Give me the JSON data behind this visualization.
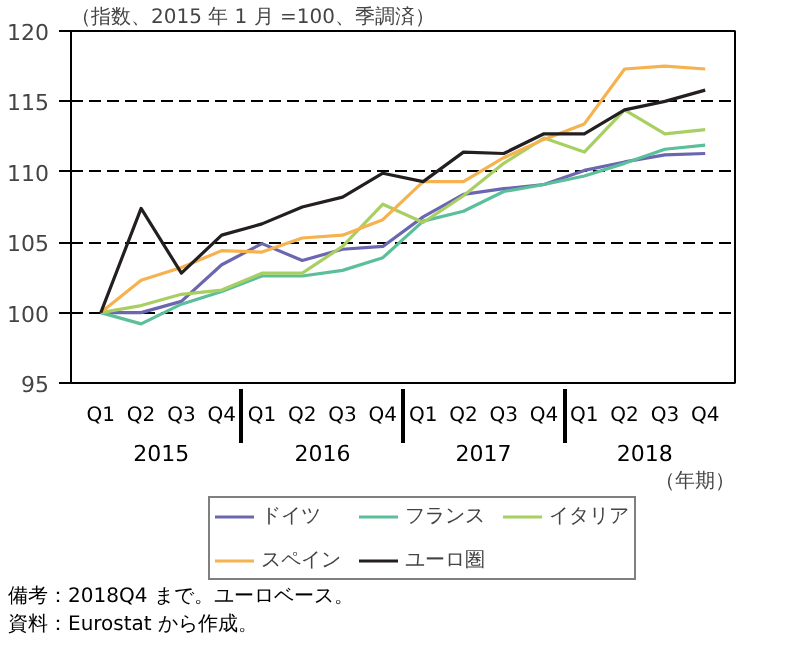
{
  "chart_data": {
    "type": "line",
    "ylabel": "（指数、2015 年 1 月 =100、季調済）",
    "xlabel": "（年期）",
    "categories": [
      "Q1",
      "Q2",
      "Q3",
      "Q4",
      "Q1",
      "Q2",
      "Q3",
      "Q4",
      "Q1",
      "Q2",
      "Q3",
      "Q4",
      "Q1",
      "Q2",
      "Q3",
      "Q4"
    ],
    "ylim": [
      95,
      120
    ],
    "yticks": [
      95,
      100,
      105,
      110,
      115,
      120
    ],
    "grid": "y",
    "legend": "bottom",
    "line_style": "solid",
    "series": [
      {
        "name": "ドイツ",
        "color": "#6b66b0",
        "values": [
          100,
          100.0,
          100.8,
          103.4,
          104.9,
          103.7,
          104.5,
          104.7,
          106.8,
          108.4,
          108.8,
          109.1,
          110.1,
          110.7,
          111.2,
          111.3
        ]
      },
      {
        "name": "フランス",
        "color": "#5bbf9a",
        "values": [
          100,
          99.2,
          100.6,
          101.5,
          102.6,
          102.6,
          103.0,
          103.9,
          106.5,
          107.2,
          108.6,
          109.1,
          109.7,
          110.6,
          111.6,
          111.9
        ]
      },
      {
        "name": "イタリア",
        "color": "#a8cf62",
        "values": [
          100,
          100.5,
          101.3,
          101.6,
          102.8,
          102.8,
          104.7,
          107.7,
          106.4,
          108.3,
          110.6,
          112.4,
          111.4,
          114.4,
          112.7,
          113.0
        ]
      },
      {
        "name": "スペイン",
        "color": "#f5b24e",
        "values": [
          100,
          102.3,
          103.2,
          104.4,
          104.3,
          105.3,
          105.5,
          106.6,
          109.3,
          109.3,
          111.0,
          112.3,
          113.4,
          117.3,
          117.5,
          117.3
        ]
      },
      {
        "name": "ユーロ圏",
        "color": "#231f20",
        "values": [
          100,
          107.4,
          102.8,
          105.5,
          106.3,
          107.5,
          108.2,
          109.9,
          109.3,
          111.4,
          111.3,
          112.7,
          112.7,
          114.4,
          115.0,
          115.8
        ]
      }
    ],
    "annotations": [
      "2015",
      "2016",
      "2017",
      "2018",
      "備考：2018Q4 まで。ユーロベース。",
      "資料：Eurostat から作成。"
    ]
  }
}
